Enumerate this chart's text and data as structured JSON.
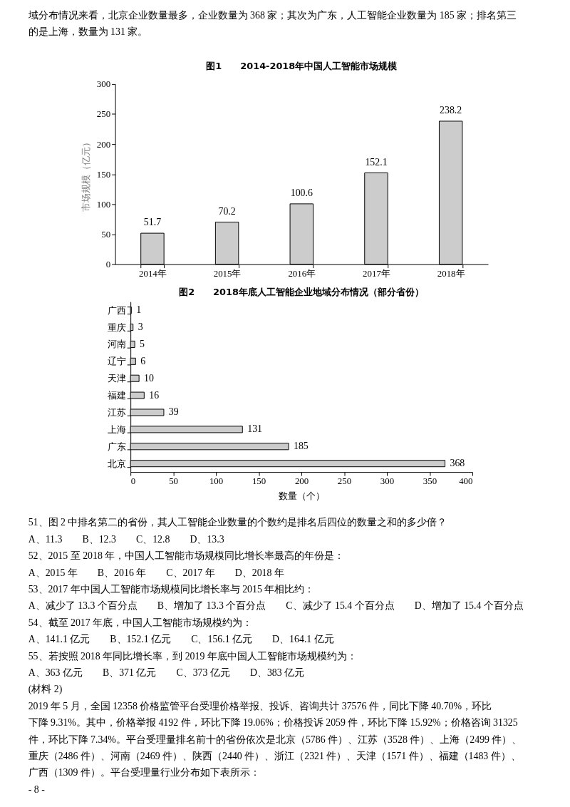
{
  "chart_data": [
    {
      "type": "bar",
      "title": "图1　　2014-2018年中国人工智能市场规模",
      "ylabel": "市场规模（亿元）",
      "categories": [
        "2014年",
        "2015年",
        "2016年",
        "2017年",
        "2018年"
      ],
      "values": [
        51.7,
        70.2,
        100.6,
        152.1,
        238.2
      ],
      "color": "#cccccc",
      "ylim": [
        0,
        300
      ],
      "yticks": [
        0,
        50,
        100,
        150,
        200,
        250,
        300
      ],
      "data_labels": true,
      "annotations": [
        "域分布情况来看，北京企业数量最多，企业数量为 368 家；其次为广东，人工智能企业数量为 185 家；排名第三",
        "的是上海，数量为 131 家。"
      ]
    },
    {
      "type": "bar",
      "orientation": "horizontal",
      "title": "图2　　2018年底人工智能企业地域分布情况（部分省份）",
      "xlabel": "数量（个）",
      "categories": [
        "广西",
        "重庆",
        "河南",
        "辽宁",
        "天津",
        "福建",
        "江苏",
        "上海",
        "广东",
        "北京"
      ],
      "values": [
        1,
        3,
        5,
        6,
        10,
        16,
        39,
        131,
        185,
        368
      ],
      "color": "#cccccc",
      "xlim": [
        0,
        400
      ],
      "xticks": [
        0,
        50,
        100,
        150,
        200,
        250,
        300,
        350,
        400
      ],
      "data_labels": true,
      "annotations": [
        "51、图 2 中排名第二的省份，其人工智能企业数量的个数约是排名后四位的数量之和的多少倍？",
        "A、11.3　　B、12.3　　C、12.8　　D、13.3",
        "52、2015 至 2018 年，中国人工智能市场规模同比增长率最高的年份是：",
        "A、2015 年　　B、2016 年　　C、2017 年　　D、2018 年",
        "53、2017 年中国人工智能市场规模同比增长率与 2015 年相比约：",
        "A、减少了 13.3 个百分点　　B、增加了 13.3 个百分点　　C、减少了 15.4 个百分点　　D、增加了 15.4 个百分点",
        "54、截至 2017 年底，中国人工智能市场规模约为：",
        "A、141.1 亿元　　B、152.1 亿元　　C、156.1 亿元　　D、164.1 亿元",
        "55、若按照 2018 年同比增长率，到 2019 年底中国人工智能市场规模约为：",
        "A、363 亿元　　B、371 亿元　　C、373 亿元　　D、383 亿元",
        "(材料 2)",
        "2019 年 5 月，全国 12358 价格监管平台受理价格举报、投诉、咨询共计 37576 件，同比下降 40.70%，环比",
        "下降 9.31%。其中，价格举报 4192 件，环比下降 19.06%；价格投诉 2059 件，环比下降 15.92%；价格咨询 31325",
        "件，环比下降 7.34%。平台受理量排名前十的省份依次是北京（5786 件）、江苏（3528 件）、上海（2499 件）、",
        "重庆（2486 件）、河南（2469 件）、陕西（2440 件）、浙江（2321 件）、天津（1571 件）、福建（1483 件）、",
        "广西（1309 件）。平台受理量行业分布如下表所示：",
        "- 8 -"
      ]
    }
  ]
}
